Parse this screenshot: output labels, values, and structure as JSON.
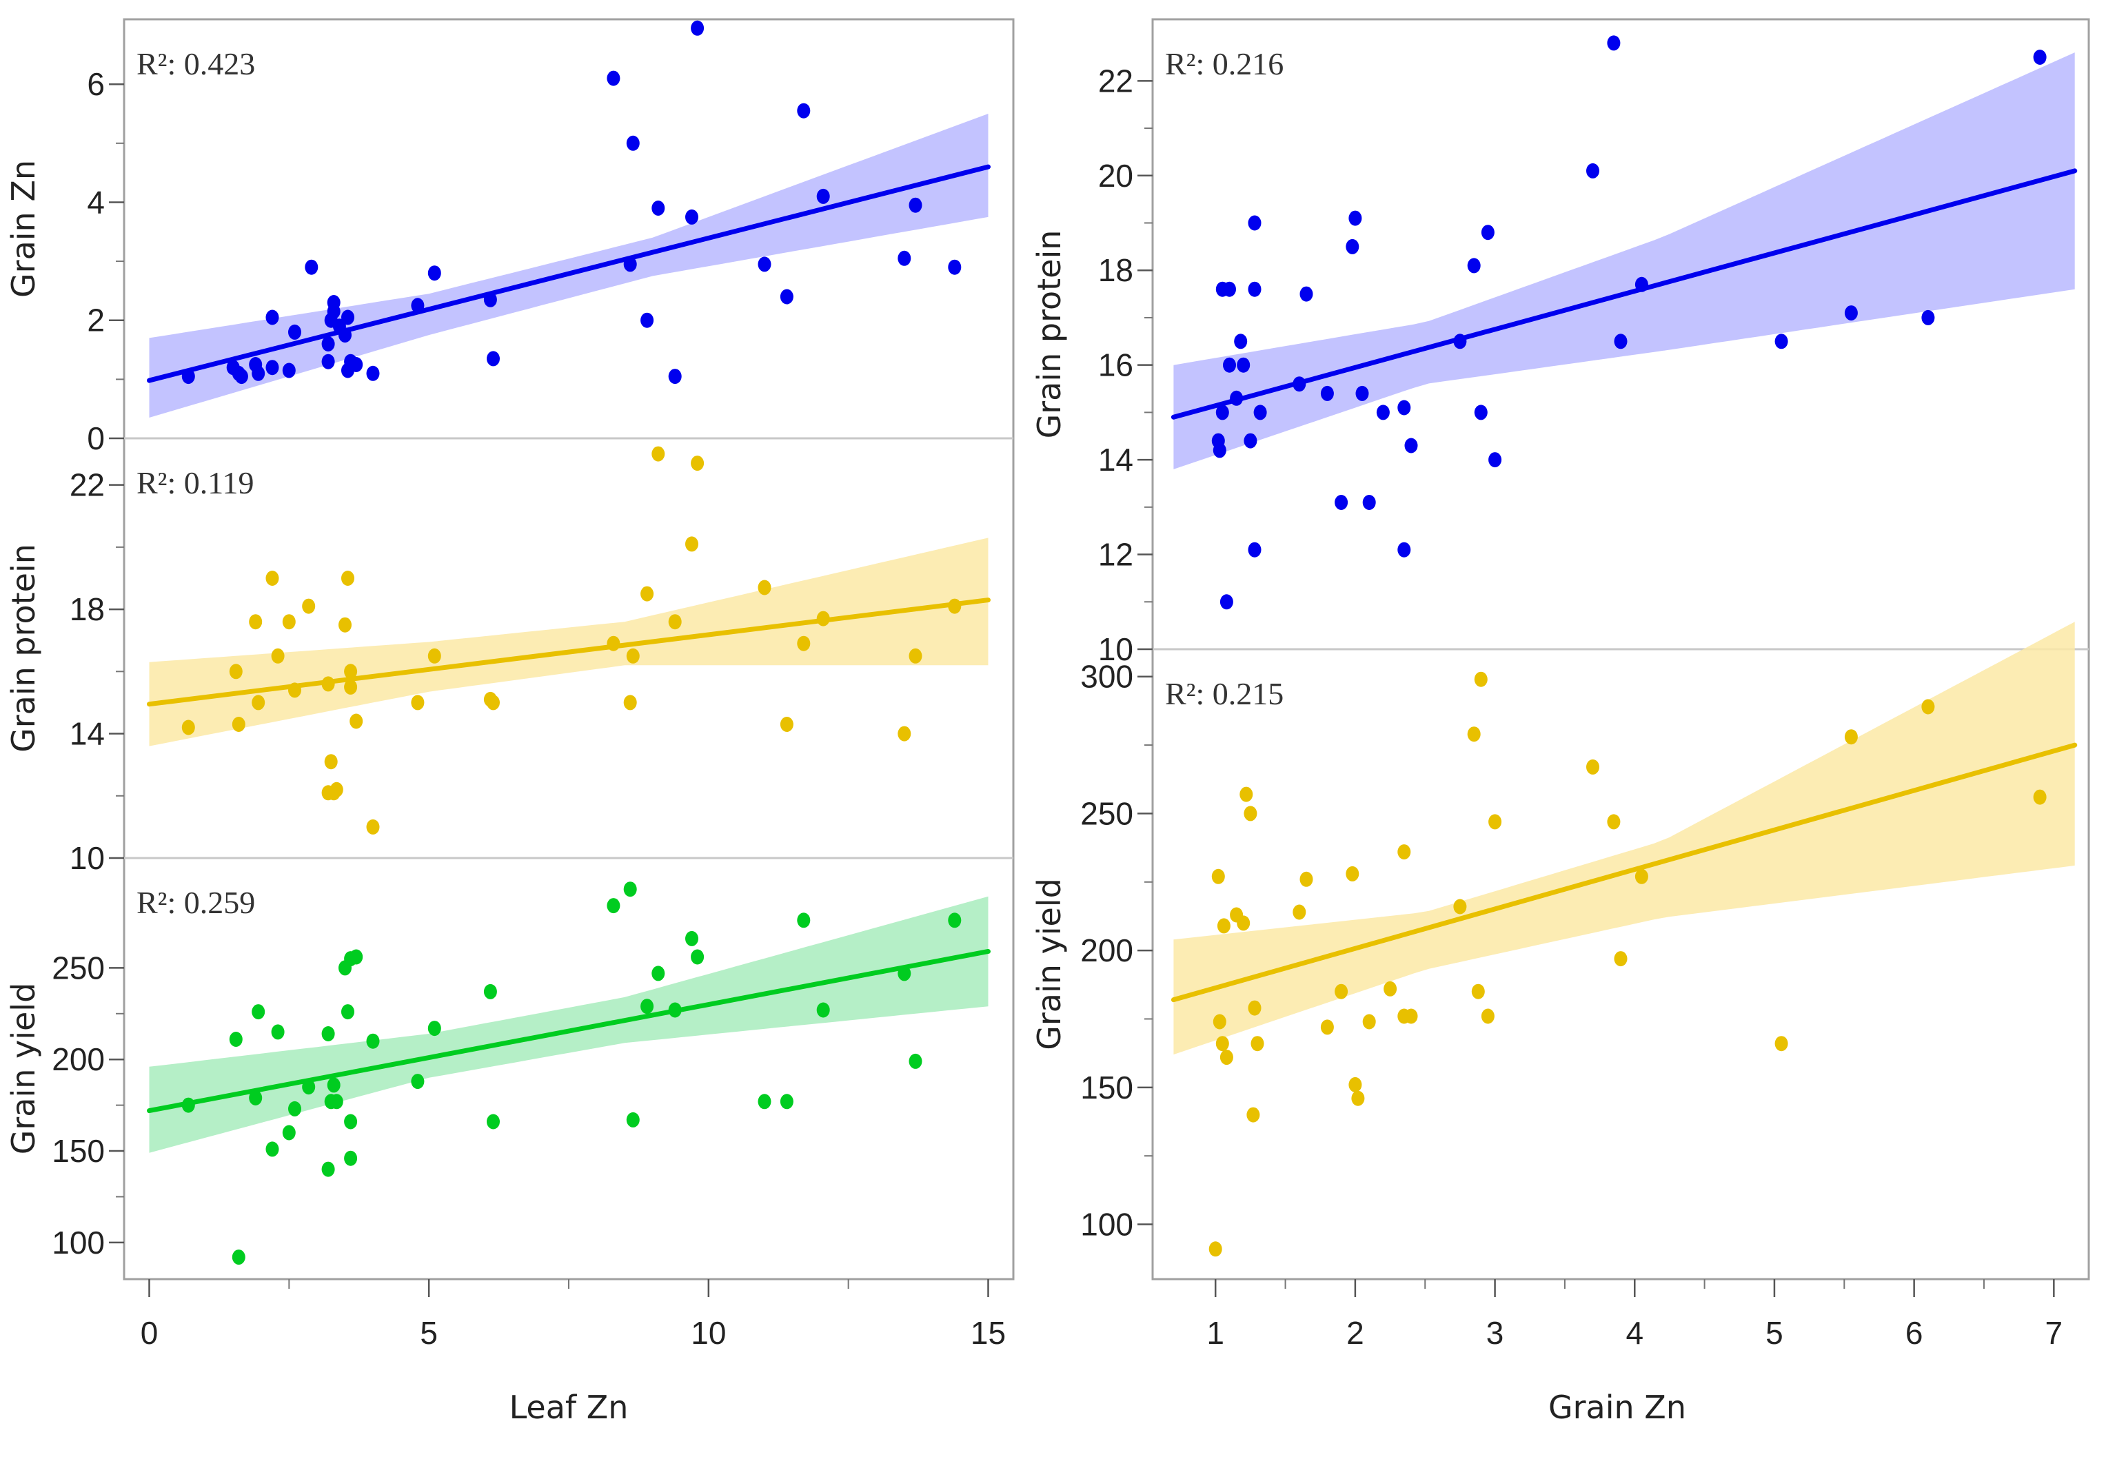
{
  "chart_data": [
    {
      "type": "scatter",
      "title": "",
      "xlabel": "Leaf Zn",
      "xlim": [
        -0.45,
        15.45
      ],
      "x_ticks": [
        0,
        5,
        10,
        15
      ],
      "panels": [
        {
          "ylabel": "Grain Zn",
          "ylim": [
            0,
            7.1
          ],
          "y_ticks": [
            0,
            2,
            4,
            6
          ],
          "r2_label": "R²: 0.423",
          "color": "#0000ee",
          "band_color": "#b8b8ff",
          "fit": {
            "x0": 0,
            "y0": 0.98,
            "x1": 15,
            "y1": 4.6
          },
          "ci": {
            "x": [
              0,
              5,
              9,
              15
            ],
            "lower": [
              0.35,
              1.75,
              2.75,
              3.75
            ],
            "upper": [
              1.7,
              2.45,
              3.4,
              5.5
            ]
          },
          "points": [
            [
              0.7,
              1.05
            ],
            [
              1.5,
              1.2
            ],
            [
              1.6,
              1.1
            ],
            [
              1.65,
              1.05
            ],
            [
              1.9,
              1.25
            ],
            [
              1.95,
              1.1
            ],
            [
              2.2,
              2.05
            ],
            [
              2.2,
              1.2
            ],
            [
              2.5,
              1.15
            ],
            [
              2.6,
              1.8
            ],
            [
              2.9,
              2.9
            ],
            [
              3.2,
              1.6
            ],
            [
              3.2,
              1.3
            ],
            [
              3.25,
              2.0
            ],
            [
              3.3,
              2.3
            ],
            [
              3.3,
              2.15
            ],
            [
              3.4,
              1.9
            ],
            [
              3.5,
              1.75
            ],
            [
              3.55,
              2.05
            ],
            [
              3.55,
              1.15
            ],
            [
              3.6,
              1.3
            ],
            [
              3.7,
              1.25
            ],
            [
              4.0,
              1.1
            ],
            [
              4.8,
              2.25
            ],
            [
              5.1,
              2.8
            ],
            [
              6.1,
              2.35
            ],
            [
              6.15,
              1.35
            ],
            [
              8.3,
              6.1
            ],
            [
              8.6,
              2.95
            ],
            [
              8.65,
              5.0
            ],
            [
              8.9,
              2.0
            ],
            [
              9.1,
              3.9
            ],
            [
              9.4,
              1.05
            ],
            [
              9.7,
              3.75
            ],
            [
              9.8,
              6.95
            ],
            [
              11.0,
              2.95
            ],
            [
              11.4,
              2.4
            ],
            [
              11.7,
              5.55
            ],
            [
              12.05,
              4.1
            ],
            [
              13.5,
              3.05
            ],
            [
              13.7,
              3.95
            ],
            [
              14.4,
              2.9
            ]
          ]
        },
        {
          "ylabel": "Grain protein",
          "ylim": [
            10,
            23.5
          ],
          "y_ticks": [
            10,
            14,
            18,
            22
          ],
          "r2_label": "R²: 0.119",
          "color": "#e8c000",
          "band_color": "#fbe9a6",
          "fit": {
            "x0": 0,
            "y0": 14.95,
            "x1": 15,
            "y1": 18.3
          },
          "ci": {
            "x": [
              0,
              5,
              8.5,
              15
            ],
            "lower": [
              13.6,
              15.35,
              16.2,
              16.2
            ],
            "upper": [
              16.3,
              16.95,
              17.6,
              20.3
            ]
          },
          "points": [
            [
              0.7,
              14.2
            ],
            [
              1.55,
              16.0
            ],
            [
              1.6,
              14.3
            ],
            [
              1.9,
              17.6
            ],
            [
              1.95,
              15.0
            ],
            [
              2.2,
              19.0
            ],
            [
              2.3,
              16.5
            ],
            [
              2.5,
              17.6
            ],
            [
              2.6,
              15.4
            ],
            [
              2.85,
              18.1
            ],
            [
              3.2,
              15.6
            ],
            [
              3.2,
              12.1
            ],
            [
              3.25,
              13.1
            ],
            [
              3.3,
              12.1
            ],
            [
              3.35,
              12.2
            ],
            [
              3.5,
              17.5
            ],
            [
              3.55,
              19.0
            ],
            [
              3.6,
              16.0
            ],
            [
              3.6,
              15.5
            ],
            [
              3.7,
              14.4
            ],
            [
              4.0,
              11.0
            ],
            [
              4.8,
              15.0
            ],
            [
              5.1,
              16.5
            ],
            [
              6.1,
              15.1
            ],
            [
              6.15,
              15.0
            ],
            [
              8.3,
              16.9
            ],
            [
              8.6,
              15.0
            ],
            [
              8.65,
              16.5
            ],
            [
              8.9,
              18.5
            ],
            [
              9.1,
              23.0
            ],
            [
              9.4,
              17.6
            ],
            [
              9.7,
              20.1
            ],
            [
              9.8,
              22.7
            ],
            [
              11.0,
              18.7
            ],
            [
              11.4,
              14.3
            ],
            [
              11.7,
              16.9
            ],
            [
              12.05,
              17.7
            ],
            [
              13.5,
              14.0
            ],
            [
              13.7,
              16.5
            ],
            [
              14.4,
              18.1
            ]
          ]
        },
        {
          "ylabel": "Grain yield",
          "ylim": [
            80,
            310
          ],
          "y_ticks": [
            100,
            150,
            200,
            250
          ],
          "r2_label": "R²: 0.259",
          "color": "#00cc20",
          "band_color": "#a8ecbd",
          "fit": {
            "x0": 0,
            "y0": 172,
            "x1": 15,
            "y1": 259
          },
          "ci": {
            "x": [
              0,
              5,
              8.5,
              15
            ],
            "lower": [
              149,
              190,
              209,
              229
            ],
            "upper": [
              196,
              214,
              234,
              289
            ]
          },
          "points": [
            [
              0.7,
              175
            ],
            [
              1.55,
              211
            ],
            [
              1.6,
              92
            ],
            [
              1.9,
              179
            ],
            [
              1.95,
              226
            ],
            [
              2.2,
              151
            ],
            [
              2.3,
              215
            ],
            [
              2.5,
              160
            ],
            [
              2.6,
              173
            ],
            [
              2.85,
              185
            ],
            [
              3.2,
              214
            ],
            [
              3.2,
              140
            ],
            [
              3.25,
              177
            ],
            [
              3.3,
              186
            ],
            [
              3.35,
              177
            ],
            [
              3.5,
              250
            ],
            [
              3.55,
              226
            ],
            [
              3.6,
              255
            ],
            [
              3.6,
              166
            ],
            [
              3.6,
              146
            ],
            [
              3.7,
              256
            ],
            [
              4.0,
              210
            ],
            [
              4.8,
              188
            ],
            [
              5.1,
              217
            ],
            [
              6.1,
              237
            ],
            [
              6.15,
              166
            ],
            [
              8.3,
              284
            ],
            [
              8.6,
              293
            ],
            [
              8.65,
              167
            ],
            [
              8.9,
              229
            ],
            [
              9.1,
              247
            ],
            [
              9.4,
              227
            ],
            [
              9.7,
              266
            ],
            [
              9.8,
              256
            ],
            [
              11.0,
              177
            ],
            [
              11.4,
              177
            ],
            [
              11.7,
              276
            ],
            [
              12.05,
              227
            ],
            [
              13.5,
              247
            ],
            [
              13.7,
              199
            ],
            [
              14.4,
              276
            ]
          ]
        }
      ]
    },
    {
      "type": "scatter",
      "title": "",
      "xlabel": "Grain Zn",
      "xlim": [
        0.55,
        7.25
      ],
      "x_ticks": [
        1,
        2,
        3,
        4,
        5,
        6,
        7
      ],
      "panels": [
        {
          "ylabel": "Grain protein",
          "ylim": [
            10,
            23.3
          ],
          "y_ticks": [
            10,
            12,
            14,
            16,
            18,
            20,
            22
          ],
          "r2_label": "R²: 0.216",
          "color": "#0000ee",
          "band_color": "#b8b8ff",
          "fit": {
            "x0": 0.7,
            "y0": 14.9,
            "x1": 7.15,
            "y1": 20.1
          },
          "ci": {
            "x": [
              0.7,
              2.5,
              4.2,
              7.15
            ],
            "lower": [
              13.8,
              15.6,
              16.3,
              17.6
            ],
            "upper": [
              16.0,
              16.9,
              18.7,
              22.6
            ]
          },
          "points": [
            [
              1.02,
              14.4
            ],
            [
              1.03,
              14.2
            ],
            [
              1.05,
              17.6
            ],
            [
              1.05,
              15.0
            ],
            [
              1.08,
              11.0
            ],
            [
              1.1,
              17.6
            ],
            [
              1.1,
              16.0
            ],
            [
              1.15,
              15.3
            ],
            [
              1.18,
              16.5
            ],
            [
              1.2,
              16.0
            ],
            [
              1.25,
              14.4
            ],
            [
              1.28,
              17.6
            ],
            [
              1.28,
              19.0
            ],
            [
              1.28,
              12.1
            ],
            [
              1.32,
              15.0
            ],
            [
              1.6,
              15.6
            ],
            [
              1.65,
              17.5
            ],
            [
              1.8,
              15.4
            ],
            [
              1.9,
              13.1
            ],
            [
              1.98,
              18.5
            ],
            [
              2.0,
              19.1
            ],
            [
              2.05,
              15.4
            ],
            [
              2.1,
              13.1
            ],
            [
              2.2,
              15.0
            ],
            [
              2.35,
              15.1
            ],
            [
              2.35,
              12.1
            ],
            [
              2.4,
              14.3
            ],
            [
              2.75,
              16.5
            ],
            [
              2.85,
              18.1
            ],
            [
              2.9,
              15.0
            ],
            [
              2.95,
              18.8
            ],
            [
              3.0,
              14.0
            ],
            [
              3.7,
              20.1
            ],
            [
              3.85,
              22.8
            ],
            [
              3.9,
              16.5
            ],
            [
              4.05,
              17.7
            ],
            [
              5.05,
              16.5
            ],
            [
              5.55,
              17.1
            ],
            [
              6.1,
              17.0
            ],
            [
              6.9,
              22.5
            ]
          ]
        },
        {
          "ylabel": "Grain yield",
          "ylim": [
            80,
            310
          ],
          "y_ticks": [
            100,
            150,
            200,
            250,
            300
          ],
          "r2_label": "R²: 0.215",
          "color": "#e8c000",
          "band_color": "#fbe9a6",
          "fit": {
            "x0": 0.7,
            "y0": 182,
            "x1": 7.15,
            "y1": 275
          },
          "ci": {
            "x": [
              0.7,
              2.5,
              4.2,
              7.15
            ],
            "lower": [
              162,
              193,
              212,
              231
            ],
            "upper": [
              204,
              214,
              240,
              320
            ]
          },
          "points": [
            [
              1.0,
              91
            ],
            [
              1.02,
              227
            ],
            [
              1.03,
              174
            ],
            [
              1.05,
              166
            ],
            [
              1.06,
              209
            ],
            [
              1.08,
              161
            ],
            [
              1.15,
              213
            ],
            [
              1.2,
              210
            ],
            [
              1.22,
              257
            ],
            [
              1.25,
              250
            ],
            [
              1.27,
              140
            ],
            [
              1.28,
              179
            ],
            [
              1.3,
              166
            ],
            [
              1.6,
              214
            ],
            [
              1.65,
              226
            ],
            [
              1.8,
              172
            ],
            [
              1.9,
              185
            ],
            [
              1.98,
              228
            ],
            [
              2.0,
              151
            ],
            [
              2.02,
              146
            ],
            [
              2.1,
              174
            ],
            [
              2.25,
              186
            ],
            [
              2.35,
              236
            ],
            [
              2.35,
              176
            ],
            [
              2.4,
              176
            ],
            [
              2.75,
              216
            ],
            [
              2.85,
              279
            ],
            [
              2.88,
              185
            ],
            [
              2.9,
              299
            ],
            [
              2.95,
              176
            ],
            [
              3.0,
              247
            ],
            [
              3.7,
              267
            ],
            [
              3.85,
              247
            ],
            [
              3.9,
              197
            ],
            [
              4.05,
              227
            ],
            [
              5.05,
              166
            ],
            [
              5.55,
              278
            ],
            [
              6.1,
              289
            ],
            [
              6.9,
              256
            ]
          ]
        }
      ]
    }
  ]
}
